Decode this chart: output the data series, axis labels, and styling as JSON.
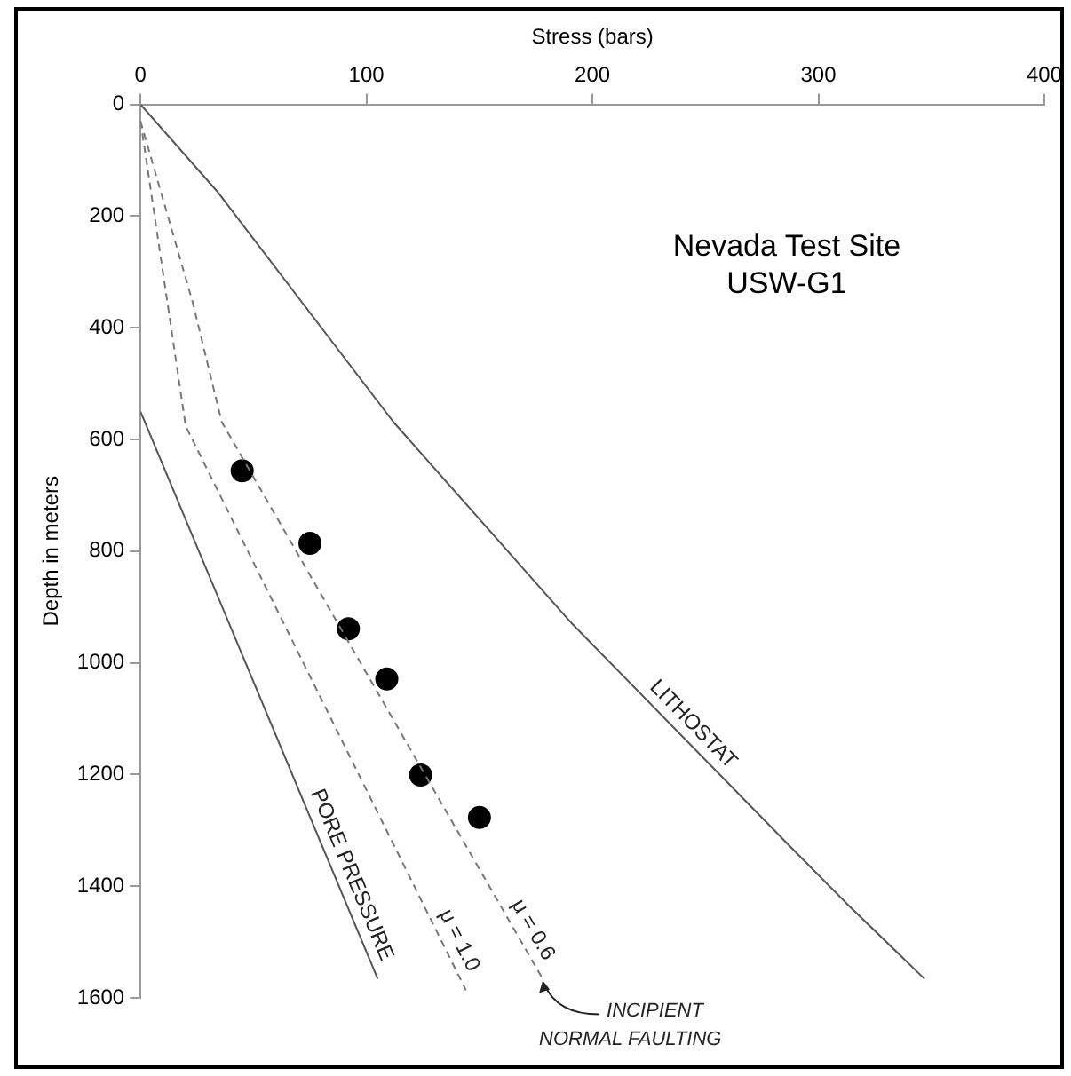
{
  "chart_data": {
    "type": "line",
    "xlabel": "Stress (bars)",
    "ylabel": "Depth in meters",
    "xlim": [
      0,
      400
    ],
    "xticks": [
      0,
      100,
      200,
      300,
      400
    ],
    "ylim": [
      1600,
      0
    ],
    "yticks": [
      0,
      200,
      400,
      600,
      800,
      1000,
      1200,
      1400,
      1600
    ],
    "grid": false,
    "legend": false,
    "annotations": [
      "Nevada Test Site",
      "USW-G1",
      {
        "text": "INCIPIENT NORMAL FAULTING",
        "x": 178,
        "y": 1566
      }
    ],
    "series": [
      {
        "name": "LITHOSTAT",
        "color": "#555555",
        "line_style": "solid",
        "x": [
          0,
          34,
          112,
          191,
          288,
          313,
          347
        ],
        "values": [
          0,
          156,
          569,
          930,
          1331,
          1433,
          1566
        ]
      },
      {
        "name": "PORE PRESSURE",
        "color": "#555555",
        "line_style": "solid",
        "x": [
          0,
          105
        ],
        "values": [
          550,
          1566
        ]
      },
      {
        "name": "μ = 1.0",
        "color": "#777777",
        "line_style": "dashed",
        "x": [
          0,
          3,
          20,
          144
        ],
        "values": [
          30,
          111,
          576,
          1586
        ]
      },
      {
        "name": "μ = 0.6",
        "color": "#777777",
        "line_style": "dashed",
        "x": [
          0,
          23,
          36,
          178
        ],
        "values": [
          30,
          353,
          569,
          1566
        ]
      },
      {
        "type": "scatter",
        "color": "#000000",
        "marker": "circle",
        "x": [
          45,
          75,
          92,
          109,
          124,
          150
        ],
        "values": [
          656,
          786,
          939,
          1029,
          1201,
          1277
        ]
      }
    ]
  }
}
